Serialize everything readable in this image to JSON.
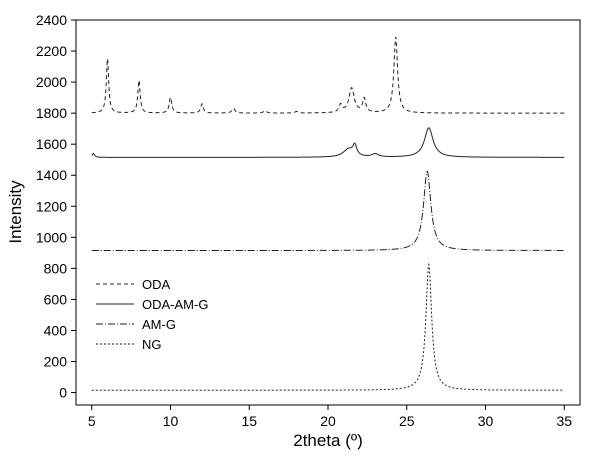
{
  "chart_data": {
    "type": "line",
    "title": "",
    "xlabel": "2theta (º)",
    "ylabel": "Intensity",
    "xlim": [
      4,
      36
    ],
    "ylim": [
      -80,
      2400
    ],
    "x_ticks": [
      5,
      10,
      15,
      20,
      25,
      30,
      35
    ],
    "y_ticks": [
      0,
      200,
      400,
      600,
      800,
      1000,
      1200,
      1400,
      1600,
      1800,
      2000,
      2200,
      2400
    ],
    "grid": false,
    "legend_position": "left",
    "series": [
      {
        "name": "ODA",
        "dash": "4,3",
        "baseline": 1800,
        "x_range": [
          5,
          35
        ],
        "peaks": [
          {
            "x": 6.0,
            "y": 2150,
            "w": 0.09
          },
          {
            "x": 8.0,
            "y": 2010,
            "w": 0.09
          },
          {
            "x": 10.0,
            "y": 1900,
            "w": 0.1
          },
          {
            "x": 12.0,
            "y": 1860,
            "w": 0.1
          },
          {
            "x": 14.0,
            "y": 1830,
            "w": 0.12
          },
          {
            "x": 16.0,
            "y": 1815,
            "w": 0.12
          },
          {
            "x": 18.0,
            "y": 1810,
            "w": 0.12
          },
          {
            "x": 20.8,
            "y": 1850,
            "w": 0.12
          },
          {
            "x": 21.5,
            "y": 1960,
            "w": 0.2
          },
          {
            "x": 22.3,
            "y": 1890,
            "w": 0.12
          },
          {
            "x": 24.3,
            "y": 2290,
            "w": 0.14
          }
        ]
      },
      {
        "name": "ODA-AM-G",
        "dash": "",
        "baseline": 1515,
        "x_range": [
          5,
          35
        ],
        "peaks": [
          {
            "x": 5.1,
            "y": 1540,
            "w": 0.1
          },
          {
            "x": 21.3,
            "y": 1565,
            "w": 0.4
          },
          {
            "x": 21.7,
            "y": 1580,
            "w": 0.15
          },
          {
            "x": 23.0,
            "y": 1535,
            "w": 0.25
          },
          {
            "x": 26.4,
            "y": 1705,
            "w": 0.33
          }
        ]
      },
      {
        "name": "AM-G",
        "dash": "7,2,1,2",
        "baseline": 915,
        "x_range": [
          5,
          35
        ],
        "peaks": [
          {
            "x": 26.3,
            "y": 1425,
            "w": 0.28
          }
        ]
      },
      {
        "name": "NG",
        "dash": "2,2",
        "baseline": 15,
        "x_range": [
          5,
          35
        ],
        "peaks": [
          {
            "x": 26.4,
            "y": 825,
            "w": 0.22
          }
        ]
      }
    ]
  }
}
